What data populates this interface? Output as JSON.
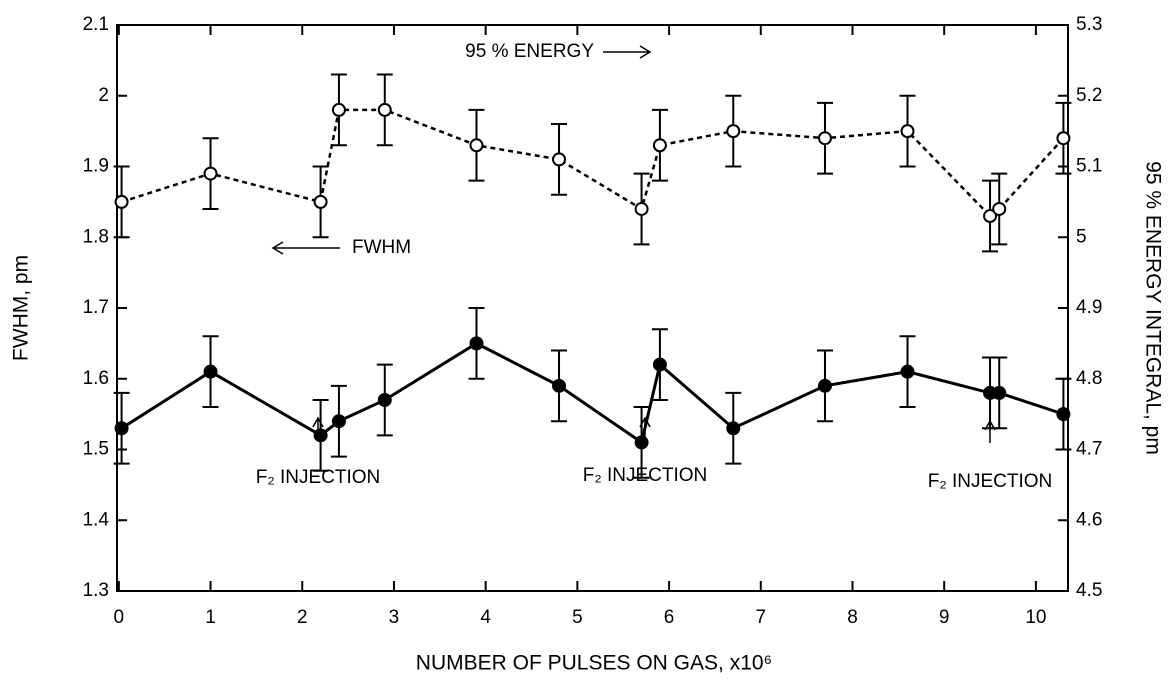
{
  "chart_data": {
    "type": "line",
    "x_label": "NUMBER OF PULSES ON GAS, x10⁶",
    "y_label": "FWHM, pm",
    "y2_label": "95 % ENERGY INTEGRAL, pm",
    "annotations": [
      "95 % ENERGY",
      "FWHM",
      "F₂ INJECTION",
      "F₂ INJECTION",
      "F₂ INJECTION"
    ],
    "xlim": [
      -0.02,
      10.35
    ],
    "xticks": [
      0,
      1,
      2,
      3,
      4,
      5,
      6,
      7,
      8,
      9,
      10
    ],
    "ylim": [
      1.3,
      2.1
    ],
    "yticks": [
      1.3,
      1.4,
      1.5,
      1.6,
      1.7,
      1.8,
      1.9,
      2.0,
      2.1
    ],
    "y2lim": [
      4.5,
      5.3
    ],
    "y2ticks": [
      4.5,
      4.6,
      4.7,
      4.8,
      4.9,
      5.0,
      5.1,
      5.2,
      5.3
    ],
    "x": [
      0.03,
      1.0,
      2.2,
      2.4,
      2.9,
      3.9,
      4.8,
      5.7,
      5.9,
      6.7,
      7.7,
      8.6,
      9.5,
      9.6,
      10.3
    ],
    "series": [
      {
        "name": "FWHM",
        "color": "#000000",
        "marker": "filled",
        "dashed": false,
        "values": [
          1.53,
          1.61,
          1.52,
          1.54,
          1.57,
          1.65,
          1.59,
          1.51,
          1.62,
          1.53,
          1.59,
          1.61,
          1.58,
          1.58,
          1.55
        ],
        "errors": [
          0.05,
          0.05,
          0.05,
          0.05,
          0.05,
          0.05,
          0.05,
          0.05,
          0.05,
          0.05,
          0.05,
          0.05,
          0.05,
          0.05,
          0.05
        ]
      },
      {
        "name": "95 % ENERGY",
        "color": "#000000",
        "marker": "open",
        "dashed": true,
        "axis": "y2",
        "values": [
          5.05,
          5.09,
          5.05,
          5.18,
          5.18,
          5.13,
          5.11,
          5.04,
          5.13,
          5.15,
          5.14,
          5.15,
          5.03,
          5.04,
          5.14
        ],
        "errors": [
          0.05,
          0.05,
          0.05,
          0.05,
          0.05,
          0.05,
          0.05,
          0.05,
          0.05,
          0.05,
          0.05,
          0.05,
          0.05,
          0.05,
          0.05
        ]
      }
    ]
  }
}
